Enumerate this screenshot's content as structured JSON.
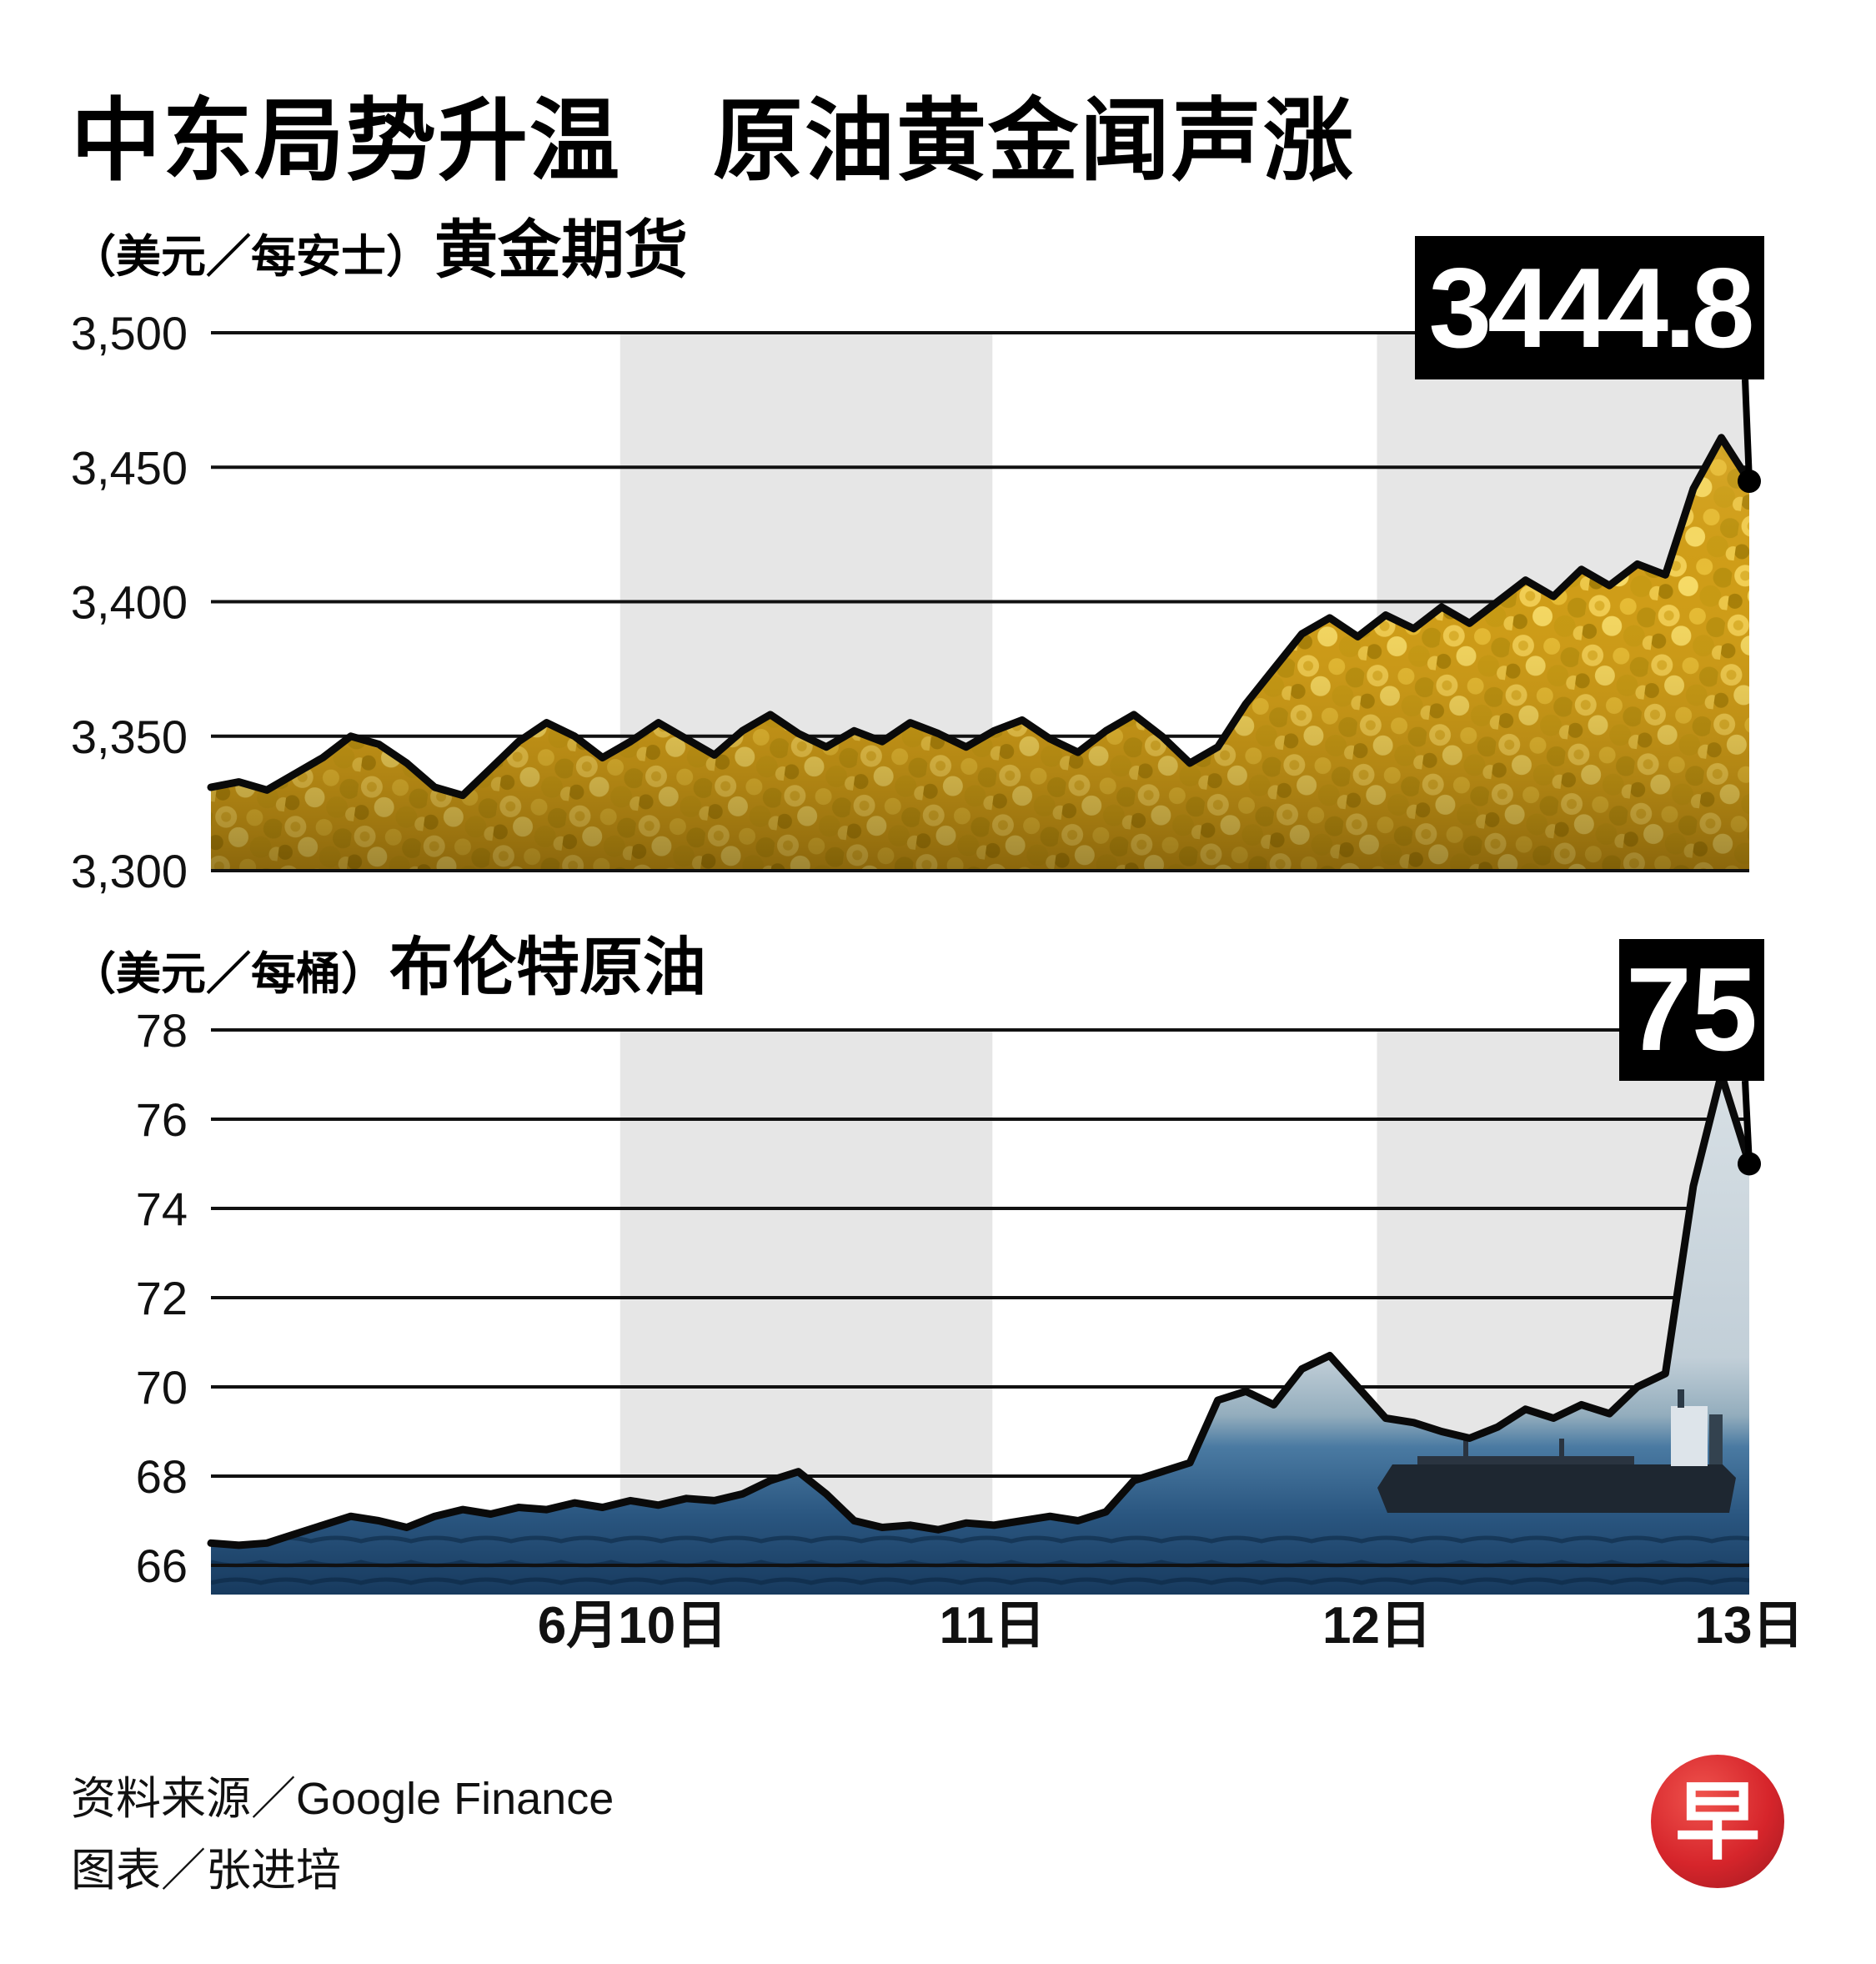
{
  "title": "中东局势升温　原油黄金闻声涨",
  "footer": {
    "source": "资料来源／Google Finance",
    "credit": "图表／张进培"
  },
  "logo": {
    "char": "早",
    "color": "#d6252b"
  },
  "colors": {
    "background": "#ffffff",
    "line": "#0a0a0a",
    "gridline": "#111111",
    "shading_band": "#e6e6e6",
    "callout_bg": "#000000",
    "callout_text": "#ffffff",
    "gold_base": "#d2a01c",
    "gold_light": "#f2cf55",
    "gold_dark": "#a57e08",
    "sky": "#d8e0e5",
    "sea_mid": "#4a7aa2",
    "sea_deep": "#173a5e",
    "tanker_hull": "#1e2731",
    "logo_red": "#d6252b"
  },
  "shading_bands": [
    {
      "from": 0.266,
      "to": 0.508
    },
    {
      "from": 0.758,
      "to": 1.0
    }
  ],
  "chart_data": [
    {
      "type": "area",
      "title": "黄金期货",
      "unit_label": "（美元／每安士）",
      "ylabel": "美元／每安士",
      "callout_label": "3444.8",
      "last_value": 3444.8,
      "ylim": [
        3300,
        3500
      ],
      "grid": true,
      "yticks": [
        {
          "value": 3500,
          "label": "3,500"
        },
        {
          "value": 3450,
          "label": "3,450"
        },
        {
          "value": 3400,
          "label": "3,400"
        },
        {
          "value": 3350,
          "label": "3,350"
        },
        {
          "value": 3300,
          "label": "3,300"
        }
      ],
      "x_labels": [
        {
          "text": "6月10日",
          "pos": 0.274
        },
        {
          "text": "11日",
          "pos": 0.508
        },
        {
          "text": "12日",
          "pos": 0.758
        },
        {
          "text": "13日",
          "pos": 1.0
        }
      ],
      "values": [
        3331,
        3333,
        3330,
        3336,
        3342,
        3350,
        3347,
        3340,
        3331,
        3328,
        3338,
        3348,
        3355,
        3350,
        3342,
        3348,
        3355,
        3349,
        3343,
        3352,
        3358,
        3351,
        3346,
        3352,
        3348,
        3355,
        3351,
        3346,
        3352,
        3356,
        3349,
        3344,
        3352,
        3358,
        3350,
        3340,
        3346,
        3362,
        3375,
        3388,
        3394,
        3387,
        3395,
        3390,
        3398,
        3392,
        3400,
        3408,
        3402,
        3412,
        3406,
        3414,
        3410,
        3442,
        3461,
        3444.8
      ]
    },
    {
      "type": "area",
      "title": "布伦特原油",
      "unit_label": "（美元／每桶）",
      "ylabel": "美元／每桶",
      "callout_label": "75",
      "last_value": 75,
      "ylim": [
        66,
        78
      ],
      "grid": true,
      "yticks": [
        {
          "value": 78,
          "label": "78"
        },
        {
          "value": 76,
          "label": "76"
        },
        {
          "value": 74,
          "label": "74"
        },
        {
          "value": 72,
          "label": "72"
        },
        {
          "value": 70,
          "label": "70"
        },
        {
          "value": 68,
          "label": "68"
        },
        {
          "value": 66,
          "label": "66"
        }
      ],
      "x_labels": [
        {
          "text": "6月10日",
          "pos": 0.274
        },
        {
          "text": "11日",
          "pos": 0.508
        },
        {
          "text": "12日",
          "pos": 0.758
        },
        {
          "text": "13日",
          "pos": 1.0
        }
      ],
      "values": [
        66.5,
        66.45,
        66.5,
        66.7,
        66.9,
        67.1,
        67.0,
        66.85,
        67.1,
        67.25,
        67.15,
        67.3,
        67.25,
        67.4,
        67.3,
        67.45,
        67.35,
        67.5,
        67.45,
        67.6,
        67.9,
        68.1,
        67.6,
        67.0,
        66.85,
        66.9,
        66.8,
        66.95,
        66.9,
        67.0,
        67.1,
        67.0,
        67.2,
        67.9,
        68.1,
        68.3,
        69.7,
        69.9,
        69.6,
        70.4,
        70.7,
        70.0,
        69.3,
        69.2,
        69.0,
        68.85,
        69.1,
        69.5,
        69.3,
        69.6,
        69.4,
        70.0,
        70.3,
        74.5,
        77.0,
        75.0
      ]
    }
  ]
}
